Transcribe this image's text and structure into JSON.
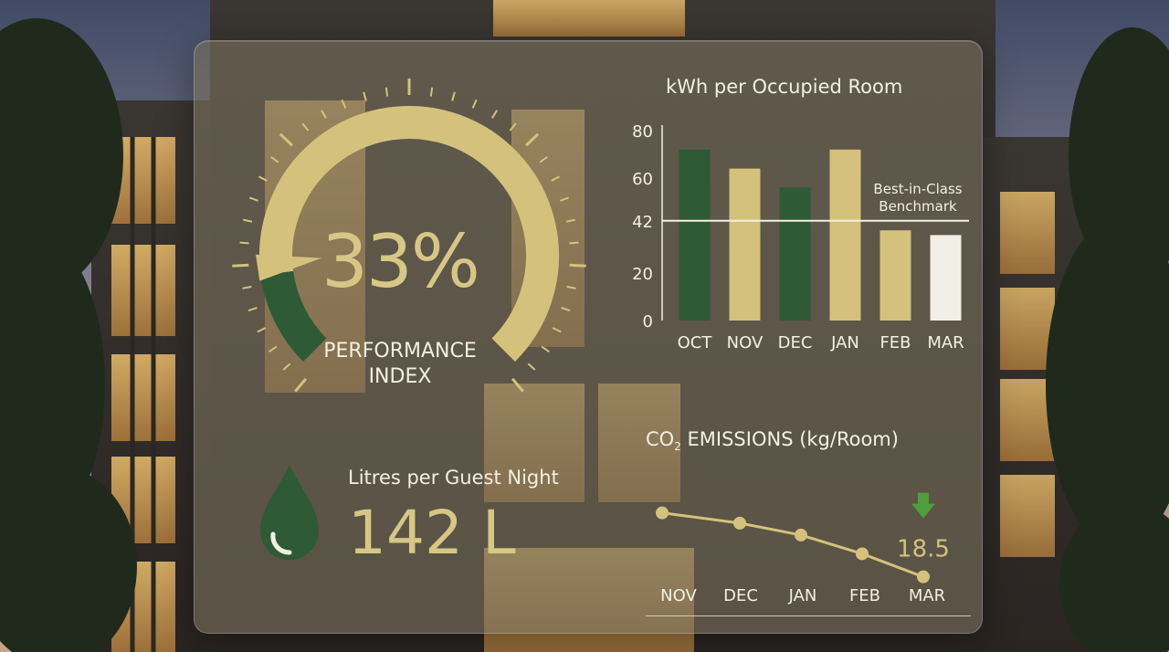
{
  "colors": {
    "dark_green": "#2e5a36",
    "gold": "#d4c27c",
    "white_bar": "#f2efe6",
    "text_light": "#f3efe3",
    "arrow_green": "#4f9e3e"
  },
  "gauge": {
    "value_text": "33%",
    "value": 33,
    "label_line1": "PERFORMANCE",
    "label_line2": "INDEX"
  },
  "water": {
    "title": "Litres per Guest Night",
    "value_text": "142 L",
    "icon": "water-drop-icon"
  },
  "chart_data": [
    {
      "type": "bar",
      "title": "kWh per Occupied Room",
      "categories": [
        "OCT",
        "NOV",
        "DEC",
        "JAN",
        "FEB",
        "MAR"
      ],
      "values": [
        72,
        64,
        56,
        72,
        38,
        36
      ],
      "bar_colors": [
        "#2e5a36",
        "#d4c27c",
        "#2e5a36",
        "#d4c27c",
        "#d4c27c",
        "#f2efe6"
      ],
      "yticks": [
        0,
        20,
        42,
        60,
        80
      ],
      "ylim": [
        0,
        80
      ],
      "benchmark": {
        "value": 42,
        "label_line1": "Best-in-Class",
        "label_line2": "Benchmark"
      }
    },
    {
      "type": "line",
      "title_prefix": "CO",
      "title_sub": "2",
      "title_suffix": " EMISSIONS (kg/Room)",
      "categories": [
        "NOV",
        "DEC",
        "JAN",
        "FEB",
        "MAR"
      ],
      "values": [
        26,
        24.8,
        23.4,
        21.2,
        18.5
      ],
      "ylim": [
        16,
        28
      ],
      "last_value_label": "18.5",
      "trend_icon": "arrow-down-icon"
    }
  ]
}
